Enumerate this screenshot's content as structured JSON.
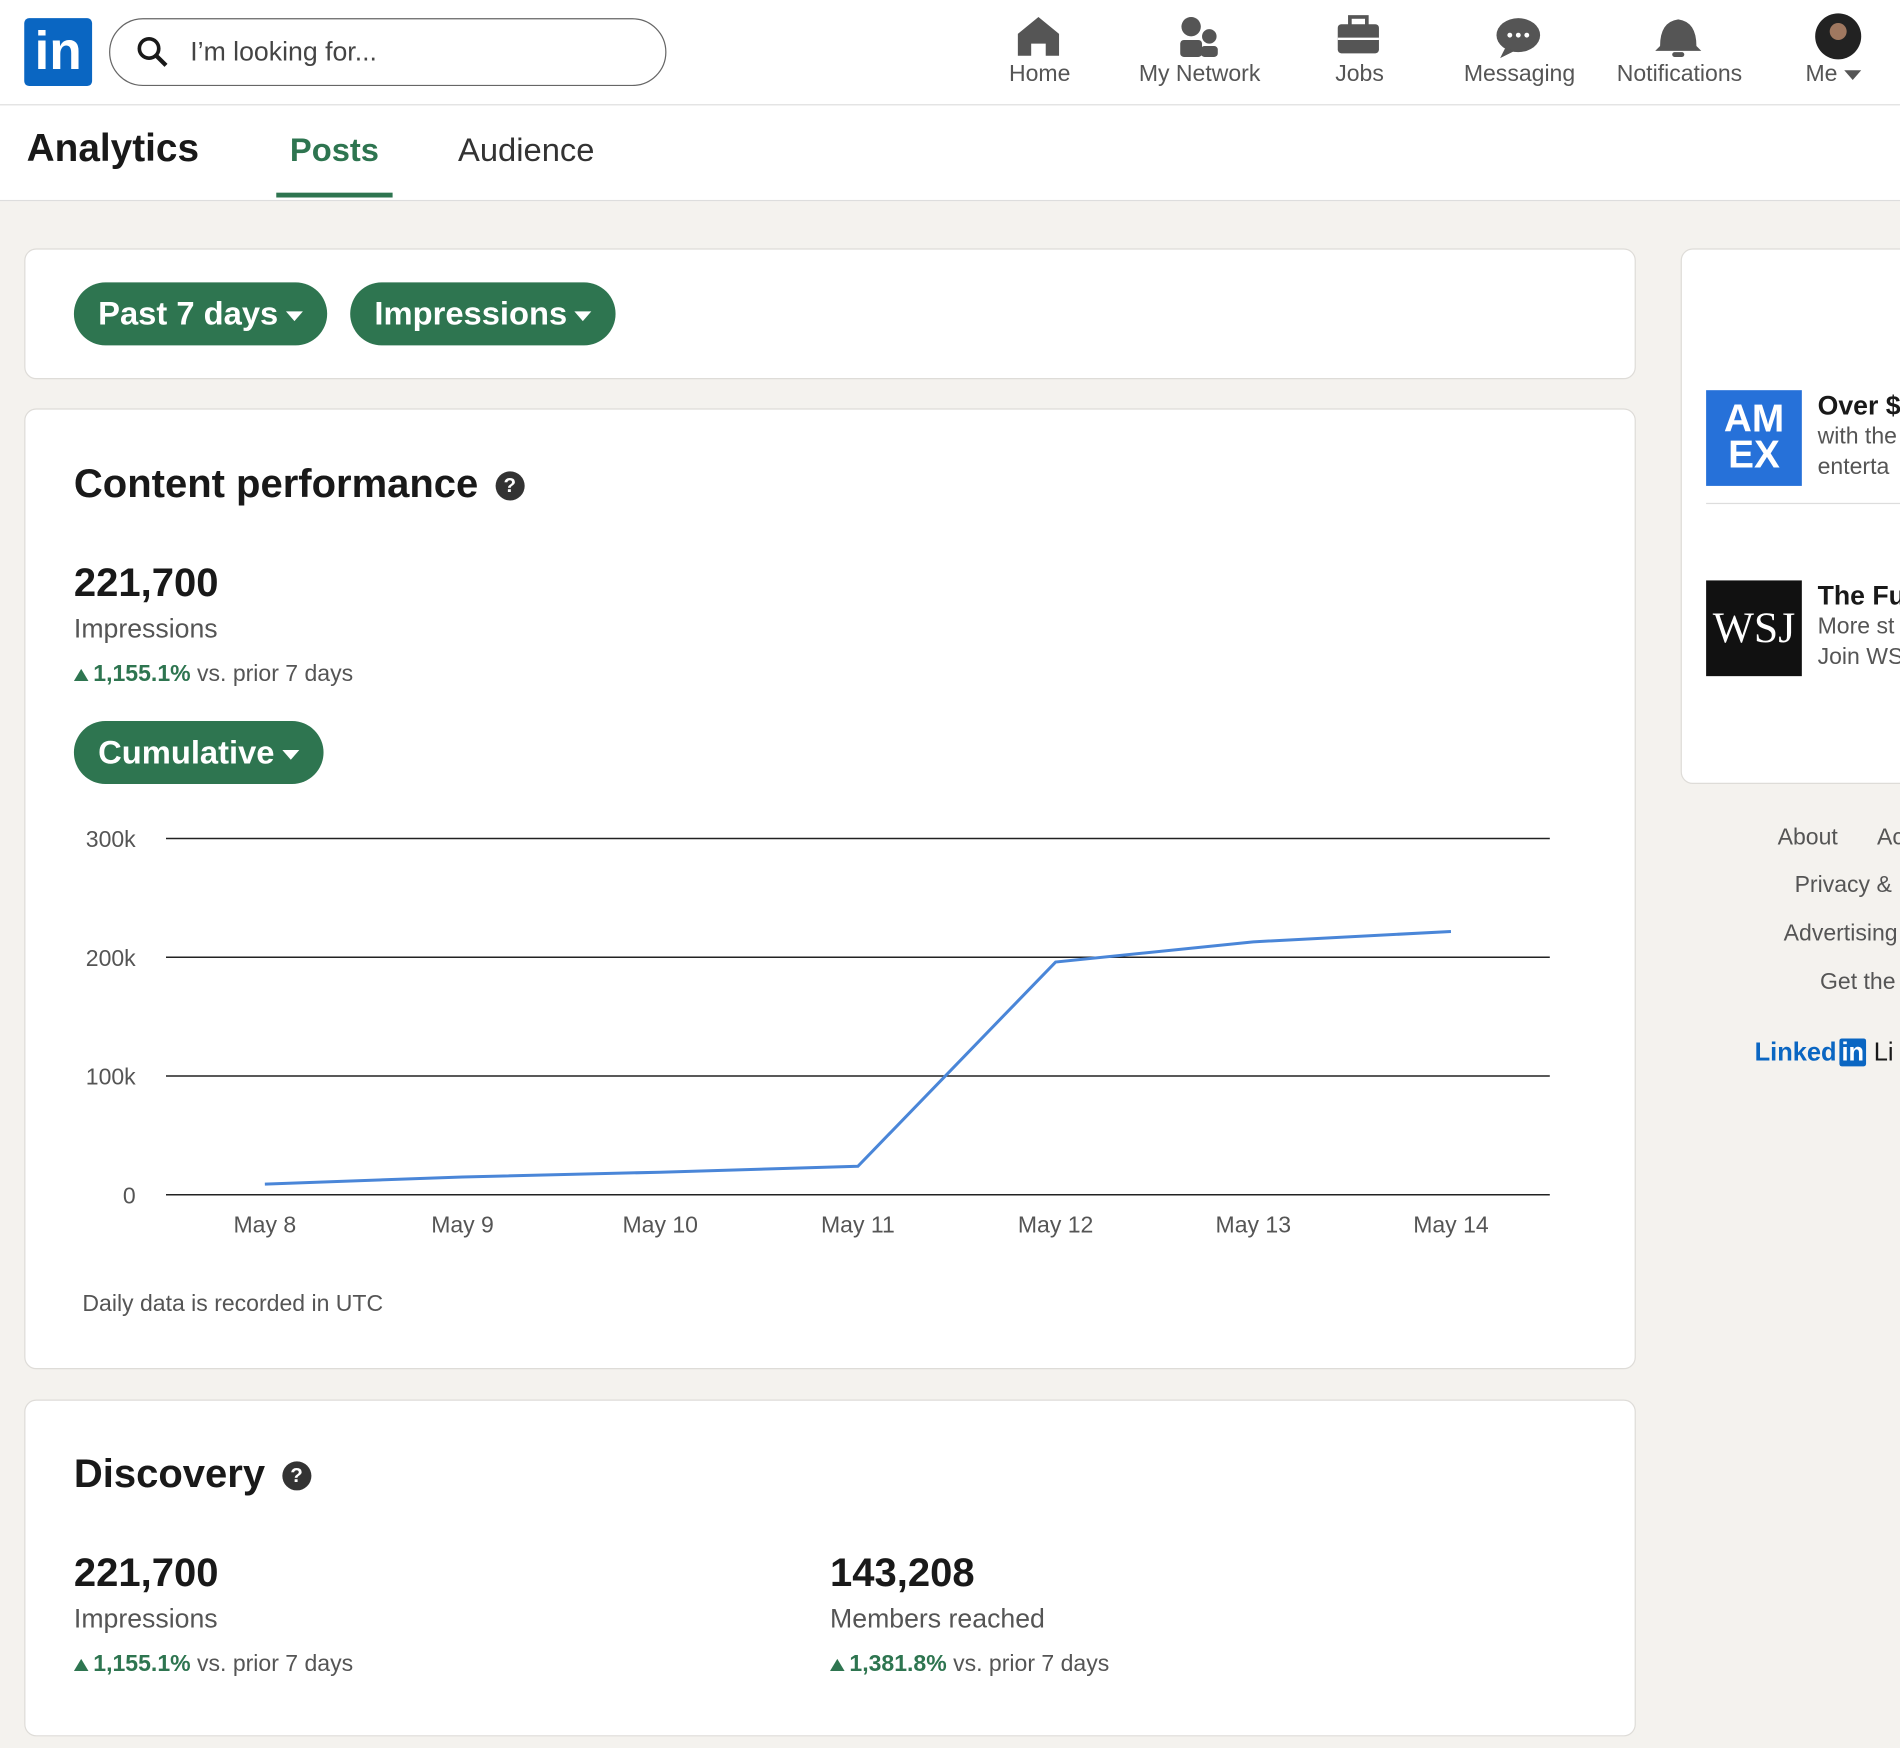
{
  "nav": {
    "logo": "in",
    "search_placeholder": "I’m looking for...",
    "items": [
      "Home",
      "My Network",
      "Jobs",
      "Messaging",
      "Notifications",
      "Me"
    ]
  },
  "tabs": {
    "title": "Analytics",
    "items": [
      "Posts",
      "Audience"
    ]
  },
  "filters": [
    "Past 7 days",
    "Impressions"
  ],
  "content_performance": {
    "title": "Content performance",
    "value": "221,700",
    "label": "Impressions",
    "change": "1,155.1%",
    "comparison": "vs. prior 7 days",
    "mode": "Cumulative",
    "note": "Daily data is recorded in UTC"
  },
  "chart_data": {
    "type": "line",
    "categories": [
      "May 8",
      "May 9",
      "May 10",
      "May 11",
      "May 12",
      "May 13",
      "May 14"
    ],
    "values": [
      9000,
      15000,
      19000,
      24000,
      196000,
      213000,
      221700
    ],
    "color": "#4a86d8",
    "ylim": [
      0,
      300000
    ],
    "yticks": [
      0,
      {
        "value": 100000,
        "label": "100k"
      },
      {
        "value": 200000,
        "label": "200k"
      },
      {
        "value": 300000,
        "label": "300k"
      }
    ],
    "grid": true
  },
  "discovery": {
    "title": "Discovery",
    "metrics": [
      {
        "value": "221,700",
        "label": "Impressions",
        "change": "1,155.1%",
        "comparison": "vs. prior 7 days"
      },
      {
        "value": "143,208",
        "label": "Members reached",
        "change": "1,381.8%",
        "comparison": "vs. prior 7 days"
      }
    ]
  },
  "ads": [
    {
      "logo_lines": [
        "AM",
        "EX"
      ],
      "title": "Over $",
      "lines": [
        "with the",
        "enterta"
      ]
    },
    {
      "logo": "WSJ",
      "title": "The Fu",
      "lines": [
        "More st",
        "Join WS"
      ]
    }
  ],
  "footer": {
    "links": [
      "About",
      "Ac",
      "Privacy &",
      "Advertising",
      "Get the"
    ],
    "brand": "Linked",
    "brand_box": "in",
    "brand_tail": "Li"
  }
}
